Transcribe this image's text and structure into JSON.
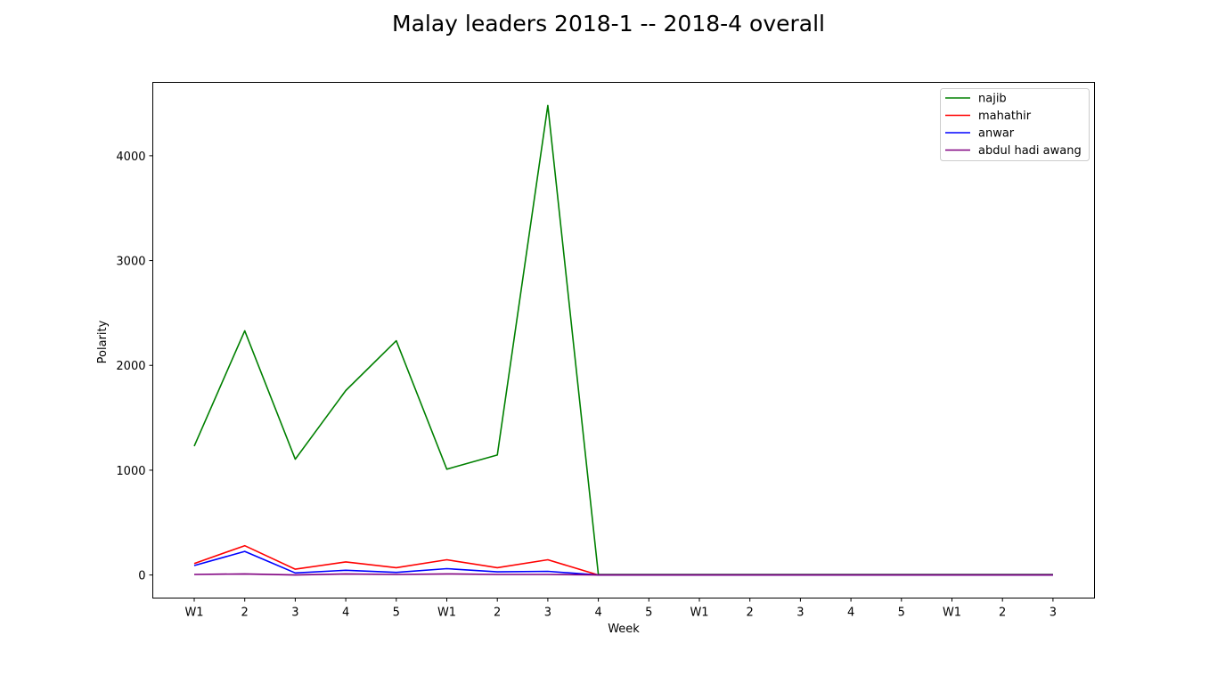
{
  "chart_data": {
    "type": "line",
    "title": "Malay leaders 2018-1 -- 2018-4 overall",
    "xlabel": "Week",
    "ylabel": "Polarity",
    "categories": [
      "W1",
      "2",
      "3",
      "4",
      "5",
      "W1",
      "2",
      "3",
      "4",
      "5",
      "W1",
      "2",
      "3",
      "4",
      "5",
      "W1",
      "2",
      "3"
    ],
    "yticks": [
      0,
      1000,
      2000,
      3000,
      4000
    ],
    "ylim": [
      -220,
      4700
    ],
    "grid": false,
    "legend_position": "top-right",
    "series": [
      {
        "name": "najib",
        "color": "#008000",
        "values": [
          1230,
          2330,
          1105,
          1760,
          2235,
          1010,
          1145,
          4480,
          5,
          5,
          5,
          5,
          5,
          5,
          5,
          5,
          5,
          5
        ]
      },
      {
        "name": "mahathir",
        "color": "#ff0000",
        "values": [
          110,
          280,
          55,
          125,
          70,
          145,
          70,
          145,
          0,
          0,
          0,
          0,
          0,
          0,
          0,
          0,
          0,
          0
        ]
      },
      {
        "name": "anwar",
        "color": "#0000ff",
        "values": [
          90,
          225,
          20,
          45,
          25,
          60,
          30,
          35,
          0,
          0,
          0,
          0,
          0,
          0,
          0,
          0,
          0,
          0
        ]
      },
      {
        "name": "abdul hadi awang",
        "color": "#800080",
        "values": [
          5,
          10,
          0,
          10,
          5,
          10,
          5,
          5,
          0,
          0,
          0,
          0,
          0,
          0,
          0,
          0,
          0,
          0
        ]
      }
    ]
  }
}
